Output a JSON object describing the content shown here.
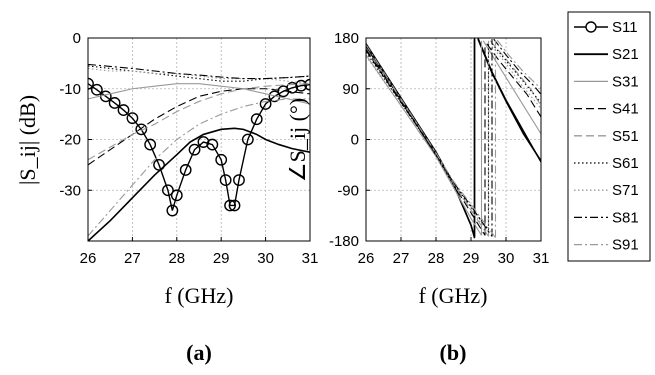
{
  "chart_data": [
    {
      "panel_label": "(a)",
      "type": "line",
      "xlabel": "f (GHz)",
      "ylabel": "|S_ij| (dB)",
      "xlim": [
        26,
        31
      ],
      "ylim": [
        -40,
        0
      ],
      "xticks": [
        "26",
        "27",
        "28",
        "29",
        "30",
        "31"
      ],
      "yticks": [
        "0",
        "-10",
        "-20",
        "-30"
      ],
      "grid": true,
      "series": [
        {
          "name": "S11",
          "x": [
            26.0,
            26.2,
            26.4,
            26.6,
            26.8,
            27.0,
            27.2,
            27.4,
            27.6,
            27.8,
            27.9,
            28.0,
            28.2,
            28.4,
            28.6,
            28.8,
            29.0,
            29.1,
            29.2,
            29.3,
            29.4,
            29.6,
            29.8,
            30.0,
            30.2,
            30.4,
            30.6,
            30.8,
            31.0
          ],
          "y": [
            -9,
            -10.2,
            -11.5,
            -12.8,
            -14.2,
            -15.8,
            -18,
            -21,
            -25,
            -30,
            -34,
            -31,
            -26,
            -22,
            -20.5,
            -21,
            -24,
            -28,
            -33,
            -33,
            -28,
            -20,
            -16,
            -13,
            -11.5,
            -10.5,
            -9.8,
            -9.4,
            -9.2
          ]
        },
        {
          "name": "S21",
          "x": [
            26.0,
            26.5,
            27.0,
            27.5,
            28.0,
            28.3,
            28.6,
            29.0,
            29.3,
            29.5,
            29.8,
            30.0,
            30.3,
            30.6,
            31.0
          ],
          "y": [
            -40,
            -36,
            -31.5,
            -27,
            -23,
            -20.5,
            -19,
            -18,
            -17.8,
            -18,
            -19,
            -20,
            -21,
            -21.8,
            -22.5
          ]
        },
        {
          "name": "S31",
          "x": [
            26.0,
            26.5,
            27.0,
            27.5,
            28.0,
            28.5,
            29.0,
            29.5,
            30.0,
            30.5,
            31.0
          ],
          "y": [
            -12,
            -11,
            -10,
            -9.5,
            -9,
            -9,
            -9.5,
            -10,
            -11,
            -12,
            -13
          ]
        },
        {
          "name": "S41",
          "x": [
            26.0,
            26.5,
            27.0,
            27.5,
            28.0,
            28.5,
            29.0,
            29.5,
            30.0,
            30.5,
            31.0
          ],
          "y": [
            -25,
            -22,
            -19,
            -16,
            -13.5,
            -11.5,
            -10.5,
            -10,
            -10,
            -10.5,
            -11
          ]
        },
        {
          "name": "S51",
          "x": [
            26.0,
            26.5,
            27.0,
            27.5,
            28.0,
            28.5,
            29.0,
            29.5,
            30.0,
            30.5,
            31.0
          ],
          "y": [
            -24,
            -21.5,
            -19,
            -17,
            -14.5,
            -12.5,
            -11,
            -10,
            -9.5,
            -9.2,
            -9
          ]
        },
        {
          "name": "S61",
          "x": [
            26.0,
            26.5,
            27.0,
            27.5,
            28.0,
            28.5,
            29.0,
            29.5,
            30.0,
            30.5,
            31.0
          ],
          "y": [
            -5.5,
            -6,
            -6.5,
            -7,
            -7.5,
            -8,
            -8.5,
            -8.5,
            -8,
            -7.8,
            -7.5
          ]
        },
        {
          "name": "S71",
          "x": [
            26.0,
            26.5,
            27.0,
            27.5,
            28.0,
            28.5,
            29.0,
            29.5,
            30.0,
            30.5,
            31.0
          ],
          "y": [
            -6,
            -6.5,
            -6.5,
            -7,
            -7,
            -7.5,
            -8,
            -8,
            -8,
            -8.5,
            -9
          ]
        },
        {
          "name": "S81",
          "x": [
            26.0,
            26.5,
            27.0,
            27.5,
            28.0,
            28.5,
            29.0,
            29.5,
            30.0,
            30.5,
            31.0
          ],
          "y": [
            -5.2,
            -5.6,
            -6,
            -6.5,
            -7,
            -7.3,
            -7.7,
            -8,
            -8,
            -7.8,
            -7.5
          ]
        },
        {
          "name": "S91",
          "x": [
            26.0,
            26.5,
            27.0,
            27.5,
            28.0,
            28.5,
            29.0,
            29.5,
            30.0,
            30.5,
            31.0
          ],
          "y": [
            -39,
            -34,
            -29,
            -24,
            -20,
            -17,
            -15,
            -13.5,
            -12.5,
            -12,
            -12
          ]
        }
      ]
    },
    {
      "panel_label": "(b)",
      "type": "line",
      "xlabel": "f (GHz)",
      "ylabel": "∠S_ij (°)",
      "xlim": [
        26,
        31
      ],
      "ylim": [
        -180,
        180
      ],
      "xticks": [
        "26",
        "27",
        "28",
        "29",
        "30",
        "31"
      ],
      "yticks": [
        "180",
        "90",
        "0",
        "-90",
        "-180"
      ],
      "grid": true,
      "series": [
        {
          "name": "S11",
          "x": [
            26.0,
            26.5,
            27.0,
            27.5,
            28.0,
            28.5,
            29.0,
            29.1,
            29.2,
            29.6,
            30.0,
            30.5,
            31.0
          ],
          "y": [
            170,
            122,
            74,
            26,
            -22,
            -78,
            -152,
            -175,
            180,
            120,
            70,
            15,
            -40
          ]
        },
        {
          "name": "S21",
          "x": [
            26.0,
            26.5,
            27.0,
            27.5,
            28.0,
            28.5,
            29.0,
            29.1,
            29.2,
            29.6,
            30.0,
            30.5,
            31.0
          ],
          "y": [
            165,
            118,
            70,
            22,
            -28,
            -80,
            -152,
            -172,
            178,
            118,
            68,
            10,
            -38
          ]
        },
        {
          "name": "S31",
          "x": [
            26.0,
            26.5,
            27.0,
            27.5,
            28.0,
            28.5,
            29.0,
            29.3,
            29.35,
            29.7,
            30.0,
            30.5,
            31.0
          ],
          "y": [
            150,
            105,
            60,
            15,
            -30,
            -85,
            -140,
            -170,
            175,
            140,
            110,
            60,
            10
          ]
        },
        {
          "name": "S41",
          "x": [
            26.0,
            26.5,
            27.0,
            27.5,
            28.0,
            28.5,
            29.0,
            29.4,
            29.45,
            29.8,
            30.2,
            30.6,
            31.0
          ],
          "y": [
            158,
            112,
            66,
            20,
            -28,
            -80,
            -130,
            -170,
            170,
            140,
            110,
            80,
            40
          ]
        },
        {
          "name": "S51",
          "x": [
            26.0,
            26.5,
            27.0,
            27.5,
            28.0,
            28.5,
            29.0,
            29.5,
            29.55,
            29.9,
            30.3,
            30.7,
            31.0
          ],
          "y": [
            162,
            116,
            70,
            24,
            -25,
            -78,
            -125,
            -172,
            175,
            150,
            120,
            90,
            60
          ]
        },
        {
          "name": "S61",
          "x": [
            26.0,
            26.5,
            27.0,
            27.5,
            28.0,
            28.5,
            29.0,
            29.5,
            29.6,
            30.0,
            30.4,
            30.8,
            31.0
          ],
          "y": [
            155,
            110,
            65,
            20,
            -26,
            -78,
            -120,
            -160,
            170,
            140,
            110,
            80,
            65
          ]
        },
        {
          "name": "S71",
          "x": [
            26.0,
            26.5,
            27.0,
            27.5,
            28.0,
            28.5,
            29.0,
            29.5,
            29.6,
            30.0,
            30.4,
            30.8,
            31.0
          ],
          "y": [
            148,
            104,
            60,
            16,
            -30,
            -80,
            -125,
            -165,
            165,
            135,
            100,
            70,
            55
          ]
        },
        {
          "name": "S81",
          "x": [
            26.0,
            26.5,
            27.0,
            27.5,
            28.0,
            28.5,
            29.0,
            29.6,
            29.65,
            30.0,
            30.4,
            30.8,
            31.0
          ],
          "y": [
            160,
            114,
            68,
            22,
            -26,
            -76,
            -118,
            -172,
            178,
            150,
            120,
            95,
            80
          ]
        },
        {
          "name": "S91",
          "x": [
            26.0,
            26.5,
            27.0,
            27.5,
            28.0,
            28.5,
            29.0,
            29.7,
            29.75,
            30.1,
            30.5,
            30.9,
            31.0
          ],
          "y": [
            168,
            120,
            72,
            24,
            -24,
            -74,
            -115,
            -174,
            176,
            148,
            120,
            96,
            90
          ]
        }
      ]
    }
  ],
  "legend": {
    "placement": "right",
    "entries": [
      "S11",
      "S21",
      "S31",
      "S41",
      "S51",
      "S61",
      "S71",
      "S81",
      "S91"
    ]
  }
}
